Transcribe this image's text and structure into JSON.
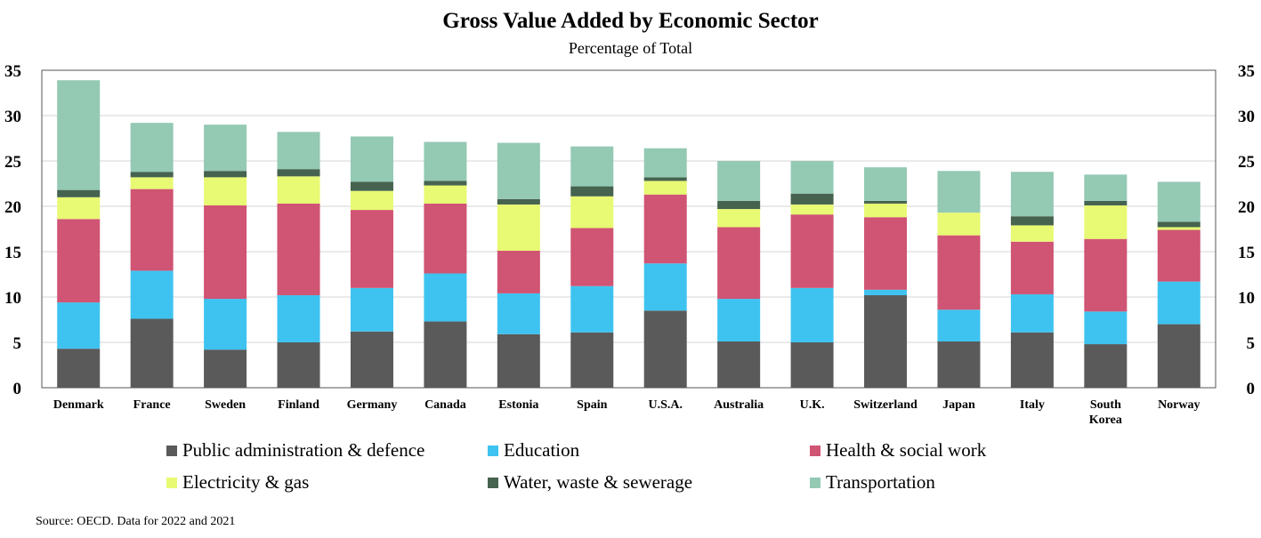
{
  "chart_data": {
    "type": "bar",
    "stacked": true,
    "title": "Gross Value Added by Economic Sector",
    "subtitle": "Percentage of Total",
    "xlabel": "",
    "ylabel": "",
    "ylim": [
      0,
      35
    ],
    "yticks": [
      "0",
      "5",
      "10",
      "15",
      "20",
      "25",
      "30",
      "35"
    ],
    "grid": true,
    "legend_position": "bottom",
    "source": "Source: OECD. Data for 2022 and 2021",
    "categories": [
      "Denmark",
      "France",
      "Sweden",
      "Finland",
      "Germany",
      "Canada",
      "Estonia",
      "Spain",
      "U.S.A.",
      "Australia",
      "U.K.",
      "Switzerland",
      "Japan",
      "Italy",
      "South Korea",
      "Norway"
    ],
    "category_lines": [
      [
        "Denmark"
      ],
      [
        "France"
      ],
      [
        "Sweden"
      ],
      [
        "Finland"
      ],
      [
        "Germany"
      ],
      [
        "Canada"
      ],
      [
        "Estonia"
      ],
      [
        "Spain"
      ],
      [
        "U.S.A."
      ],
      [
        "Australia"
      ],
      [
        "U.K."
      ],
      [
        "Switzerland"
      ],
      [
        "Japan"
      ],
      [
        "Italy"
      ],
      [
        "South",
        "Korea"
      ],
      [
        "Norway"
      ]
    ],
    "series": [
      {
        "name": "Public administration & defence",
        "color": "#5a5a5a",
        "values": [
          4.3,
          7.6,
          4.2,
          5.0,
          6.2,
          7.3,
          5.9,
          6.1,
          8.5,
          5.1,
          5.0,
          10.2,
          5.1,
          6.1,
          4.8,
          7.0
        ]
      },
      {
        "name": "Education",
        "color": "#3ec3f0",
        "values": [
          5.1,
          5.3,
          5.6,
          5.2,
          4.8,
          5.3,
          4.5,
          5.1,
          5.2,
          4.7,
          6.0,
          0.6,
          3.5,
          4.2,
          3.6,
          4.7
        ]
      },
      {
        "name": "Health & social work",
        "color": "#d05473",
        "values": [
          9.2,
          9.0,
          10.3,
          10.1,
          8.6,
          7.7,
          4.7,
          6.4,
          7.6,
          7.9,
          8.1,
          8.0,
          8.2,
          5.8,
          8.0,
          5.7
        ]
      },
      {
        "name": "Electricity & gas",
        "color": "#e8fa73",
        "values": [
          2.4,
          1.3,
          3.1,
          3.0,
          2.1,
          2.0,
          5.1,
          3.5,
          1.5,
          2.0,
          1.1,
          1.5,
          2.5,
          1.8,
          3.7,
          0.3
        ]
      },
      {
        "name": "Water, waste & sewerage",
        "color": "#45634f",
        "values": [
          0.8,
          0.6,
          0.7,
          0.8,
          1.0,
          0.5,
          0.6,
          1.1,
          0.4,
          0.9,
          1.2,
          0.3,
          0.0,
          1.0,
          0.5,
          0.6
        ]
      },
      {
        "name": "Transportation",
        "color": "#94c9b4",
        "values": [
          12.1,
          5.4,
          5.1,
          4.1,
          5.0,
          4.3,
          6.2,
          4.4,
          3.2,
          4.4,
          3.6,
          3.7,
          4.6,
          4.9,
          2.9,
          4.4
        ]
      }
    ]
  }
}
